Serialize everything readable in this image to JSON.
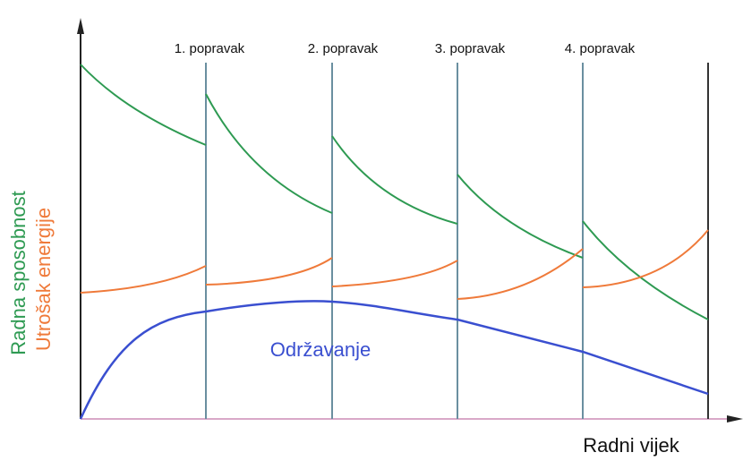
{
  "repairs": [
    "1. popravak",
    "2. popravak",
    "3. popravak",
    "4. popravak"
  ],
  "y_labels": {
    "capacity": "Radna sposobnost",
    "energy": "Utrošak energije"
  },
  "maintenance_label": "Održavanje",
  "x_label": "Radni vijek"
}
